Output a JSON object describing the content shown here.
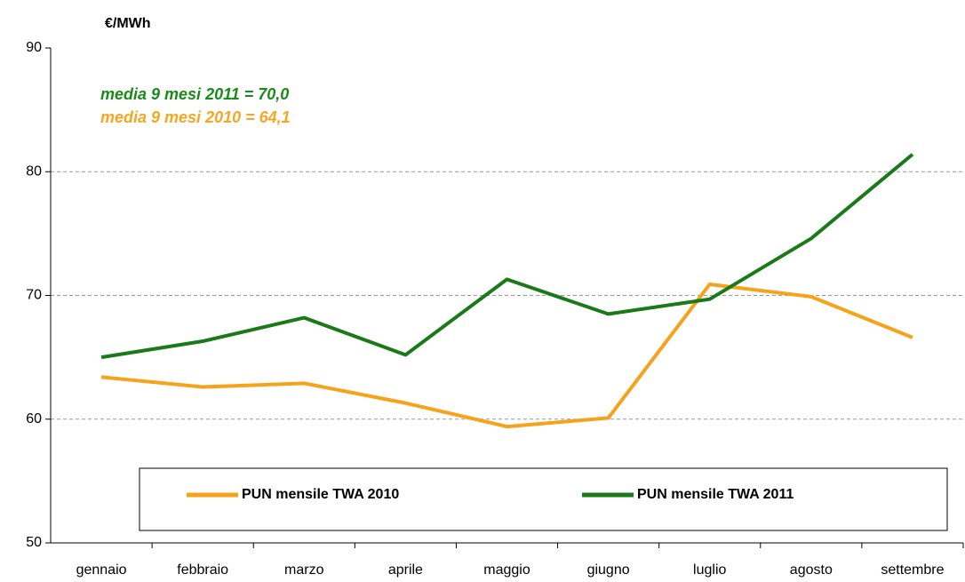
{
  "chart_data": {
    "type": "line",
    "y_label": "€/MWh",
    "annotations": [
      {
        "text": "media 9 mesi 2011 = 70,0",
        "color": "#1a8a1a"
      },
      {
        "text": "media 9 mesi 2010 = 64,1",
        "color": "#f5a623"
      }
    ],
    "categories": [
      "gennaio",
      "febbraio",
      "marzo",
      "aprile",
      "maggio",
      "giugno",
      "luglio",
      "agosto",
      "settembre"
    ],
    "series": [
      {
        "name": "PUN mensile TWA  2010",
        "color": "#f7a21b",
        "values": [
          63.4,
          62.6,
          62.9,
          61.3,
          59.4,
          60.1,
          70.9,
          69.9,
          66.6
        ]
      },
      {
        "name": "PUN mensile TWA  2011",
        "color": "#1a7a1a",
        "values": [
          65.0,
          66.3,
          68.2,
          65.2,
          71.3,
          68.5,
          69.7,
          74.6,
          81.4
        ]
      }
    ],
    "ylim": [
      50,
      90
    ],
    "yticks": [
      50,
      60,
      70,
      80,
      90
    ],
    "grid": true
  }
}
